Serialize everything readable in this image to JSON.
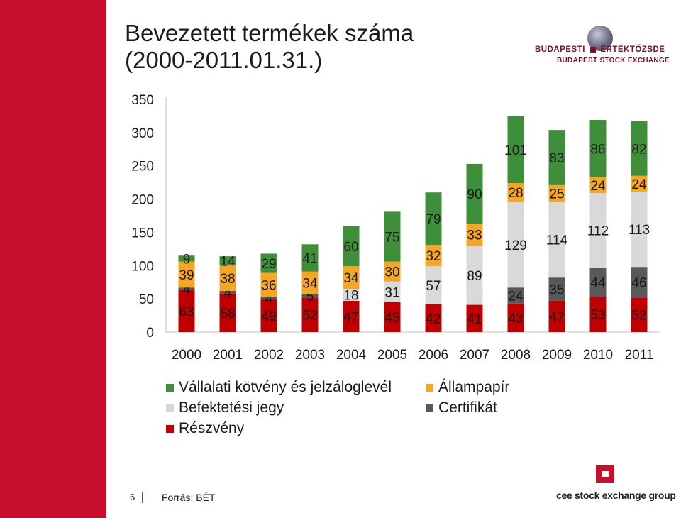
{
  "header": {
    "title_line1": "Bevezetett termékek száma",
    "title_line2": "(2000-2011.01.31.)"
  },
  "logo": {
    "name_hu_part1": "BUDAPESTI",
    "name_hu_part2": "ÉRTÉKTŐZSDE",
    "name_en": "BUDAPEST STOCK EXCHANGE"
  },
  "footer": {
    "page_number": "6",
    "source": "Forrás: BÉT",
    "group_logo": "cee stock exchange group"
  },
  "colors": {
    "brand_red": "#c8102e",
    "reszveny": "#c00000",
    "certifikat": "#595959",
    "befektetesi": "#d9d9d9",
    "allampapir": "#f5a623",
    "vallalati": "#3f8f3a"
  },
  "chart_data": {
    "type": "bar",
    "stacked": true,
    "categories": [
      "2000",
      "2001",
      "2002",
      "2003",
      "2004",
      "2005",
      "2006",
      "2007",
      "2008",
      "2009",
      "2010",
      "2011"
    ],
    "yticks": [
      "0",
      "50",
      "100",
      "150",
      "200",
      "250",
      "300",
      "350"
    ],
    "ylim": [
      0,
      350
    ],
    "legend_position": "bottom",
    "series": [
      {
        "name": "Részvény",
        "color": "#c00000",
        "values": [
          63,
          58,
          49,
          52,
          47,
          45,
          42,
          41,
          43,
          47,
          53,
          52
        ],
        "labels": [
          "63",
          "58",
          "49",
          "52",
          "47",
          "45",
          "42",
          "41",
          "43",
          "47",
          "53",
          "52"
        ]
      },
      {
        "name": "Certifikát",
        "color": "#595959",
        "values": [
          4,
          4,
          4,
          5,
          0,
          0,
          0,
          0,
          24,
          35,
          44,
          46
        ],
        "labels": [
          "4",
          "4",
          "4",
          "5",
          "",
          "",
          "",
          "",
          "24",
          "35",
          "44",
          "46"
        ]
      },
      {
        "name": "Befektetési jegy",
        "color": "#d9d9d9",
        "values": [
          0,
          0,
          0,
          0,
          18,
          31,
          57,
          89,
          129,
          114,
          112,
          113
        ],
        "labels": [
          "",
          "",
          "",
          "",
          "18",
          "31",
          "57",
          "89",
          "129",
          "114",
          "112",
          "113"
        ]
      },
      {
        "name": "Állampapír",
        "color": "#f5a623",
        "values": [
          39,
          38,
          36,
          34,
          34,
          30,
          32,
          33,
          28,
          25,
          24,
          24
        ],
        "labels": [
          "39",
          "38",
          "36",
          "34",
          "34",
          "30",
          "32",
          "33",
          "28",
          "25",
          "24",
          "24"
        ]
      },
      {
        "name": "Vállalati kötvény és jelzáloglevél",
        "color": "#3f8f3a",
        "values": [
          9,
          14,
          29,
          41,
          60,
          75,
          79,
          90,
          101,
          83,
          86,
          82
        ],
        "labels": [
          "9",
          "14",
          "29",
          "41",
          "60",
          "75",
          "79",
          "90",
          "101",
          "83",
          "86",
          "82"
        ]
      }
    ],
    "legend": [
      {
        "label": "Vállalati kötvény és jelzáloglevél",
        "color": "#3f8f3a"
      },
      {
        "label": "Állampapír",
        "color": "#f5a623"
      },
      {
        "label": "Befektetési jegy",
        "color": "#d9d9d9"
      },
      {
        "label": "Certifikát",
        "color": "#595959"
      },
      {
        "label": "Részvény",
        "color": "#c00000"
      }
    ]
  }
}
